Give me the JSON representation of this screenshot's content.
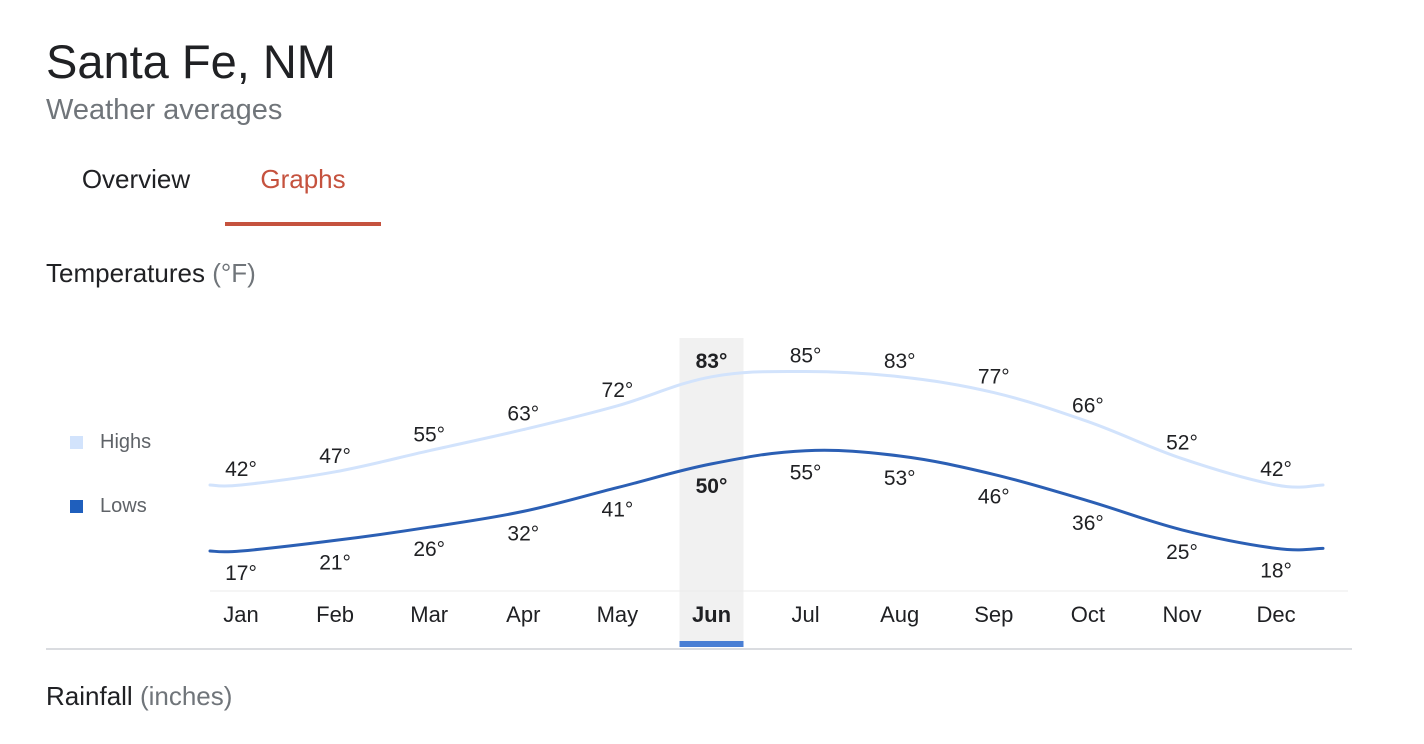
{
  "header": {
    "title": "Santa Fe, NM",
    "subtitle": "Weather averages"
  },
  "tabs": [
    {
      "label": "Overview",
      "selected": false
    },
    {
      "label": "Graphs",
      "selected": true
    }
  ],
  "temperatures_section": {
    "title": "Temperatures",
    "unit": "(°F)"
  },
  "rainfall_section": {
    "title": "Rainfall",
    "unit": "(inches)"
  },
  "legend": [
    {
      "label": "Highs",
      "color": "#d2e3fc"
    },
    {
      "label": "Lows",
      "color": "#1f5fbd"
    }
  ],
  "colors": {
    "accent_tab": "#c5523e",
    "highs_line": "#d2e3fc",
    "lows_line": "#2b5fb4",
    "selected_column": "#f1f1f1",
    "selected_indicator": "#4a7fd4"
  },
  "chart_data": {
    "type": "line",
    "categories": [
      "Jan",
      "Feb",
      "Mar",
      "Apr",
      "May",
      "Jun",
      "Jul",
      "Aug",
      "Sep",
      "Oct",
      "Nov",
      "Dec"
    ],
    "series": [
      {
        "name": "Highs",
        "values": [
          42,
          47,
          55,
          63,
          72,
          83,
          85,
          83,
          77,
          66,
          52,
          42
        ],
        "labels": [
          "42°",
          "47°",
          "55°",
          "63°",
          "72°",
          "83°",
          "85°",
          "83°",
          "77°",
          "66°",
          "52°",
          "42°"
        ]
      },
      {
        "name": "Lows",
        "values": [
          17,
          21,
          26,
          32,
          41,
          50,
          55,
          53,
          46,
          36,
          25,
          18
        ],
        "labels": [
          "17°",
          "21°",
          "26°",
          "32°",
          "41°",
          "50°",
          "55°",
          "53°",
          "46°",
          "36°",
          "25°",
          "18°"
        ]
      }
    ],
    "selected_month": "Jun",
    "grid": false,
    "legend_position": "left"
  }
}
